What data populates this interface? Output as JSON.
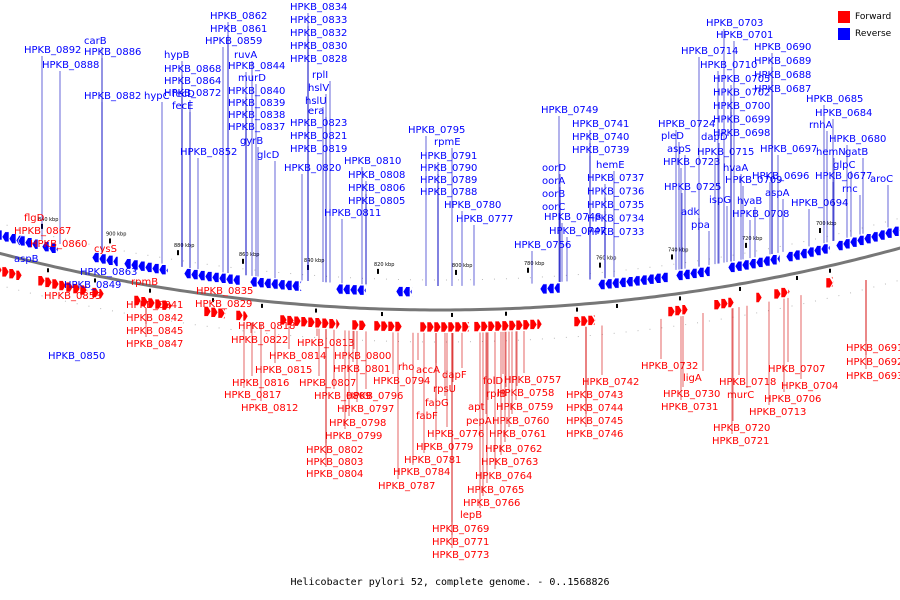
{
  "title": "Helicobacter pylori 52, complete genome. - 0..1568826",
  "legend": [
    {
      "label": "Forward",
      "color": "#ff0000"
    },
    {
      "label": "Reverse",
      "color": "#0000ff"
    }
  ],
  "colors": {
    "forward": "#ff0000",
    "reverse": "#0000ff",
    "forward_line": "#d40000",
    "reverse_line": "#0000c0",
    "backbone": "#777777"
  },
  "scale_ticks": [
    "840 kbp",
    "900 kbp",
    "880 kbp",
    "860 kbp",
    "840 kbp",
    "820 kbp",
    "800 kbp",
    "780 kbp",
    "760 kbp",
    "740 kbp",
    "720 kbp",
    "700 kbp"
  ],
  "reverse_labels": [
    "carB",
    "HPKB_0892",
    "HPKB_0886",
    "HPKB_0888",
    "HPKB_0882",
    "hypB",
    "hypC",
    "HPKB_0868",
    "HPKB_0864",
    "HPKB_0872",
    "fecD",
    "fecE",
    "HPKB_0862",
    "HPKB_0861",
    "HPKB_0859",
    "ruvA",
    "HPKB_0844",
    "murD",
    "HPKB_0840",
    "HPKB_0839",
    "HPKB_0838",
    "HPKB_0837",
    "gyrB",
    "HPKB_0852",
    "glcD",
    "HPKB_0834",
    "HPKB_0833",
    "HPKB_0832",
    "HPKB_0830",
    "HPKB_0828",
    "rplI",
    "hslV",
    "hslU",
    "era",
    "HPKB_0823",
    "HPKB_0821",
    "HPKB_0819",
    "HPKB_0820",
    "HPKB_0810",
    "HPKB_0808",
    "HPKB_0806",
    "HPKB_0805",
    "HPKB_0811",
    "HPKB_0795",
    "rpmE",
    "HPKB_0791",
    "HPKB_0790",
    "HPKB_0789",
    "HPKB_0788",
    "HPKB_0780",
    "HPKB_0777",
    "HPKB_0749",
    "HPKB_0741",
    "HPKB_0740",
    "HPKB_0739",
    "hemE",
    "HPKB_0737",
    "HPKB_0736",
    "HPKB_0735",
    "HPKB_0734",
    "HPKB_0733",
    "oorD",
    "oorA",
    "oorB",
    "oorC",
    "HPKB_0748",
    "HPKB_0747",
    "HPKB_0756",
    "HPKB_0724",
    "pleD",
    "aspS",
    "HPKB_0723",
    "HPKB_0725",
    "adk",
    "ppa",
    "dapD",
    "HPKB_0715",
    "hvaA",
    "ispG",
    "hyaB",
    "HPKB_0709",
    "HPKB_0708",
    "HPKB_0703",
    "HPKB_0701",
    "HPKB_0714",
    "HPKB_0710",
    "HPKB_0705",
    "HPKB_0702",
    "HPKB_0700",
    "HPKB_0699",
    "HPKB_0698",
    "HPKB_0697",
    "HPKB_0696",
    "aspA",
    "HPKB_0694",
    "HPKB_0690",
    "HPKB_0689",
    "HPKB_0688",
    "HPKB_0687",
    "HPKB_0685",
    "HPKB_0684",
    "rnhA",
    "HPKB_0680",
    "hemN",
    "gatB",
    "glpC",
    "HPKB_0677",
    "rnc",
    "aroC",
    "aspB",
    "HPKB_0863",
    "HPKB_0849",
    "HPKB_0850",
    "HPKB_0848"
  ],
  "forward_labels": [
    "flgD",
    "HPKB_0867",
    "HPKB_0860",
    "cysS",
    "rpmB",
    "HPKB_0853",
    "HPKB_0841",
    "HPKB_0842",
    "HPKB_0845",
    "HPKB_0847",
    "HPKB_0835",
    "HPKB_0829",
    "HPKB_0818",
    "HPKB_0822",
    "HPKB_0813",
    "HPKB_0814",
    "HPKB_0815",
    "HPKB_0816",
    "HPKB_0817",
    "HPKB_0812",
    "HPKB_0800",
    "HPKB_0801",
    "HPKB_0807",
    "HPKB_0809",
    "HPKB_0796",
    "HPKB_0797",
    "HPKB_0798",
    "HPKB_0799",
    "HPKB_0802",
    "HPKB_0803",
    "HPKB_0804",
    "rho",
    "HPKB_0794",
    "accA",
    "dapF",
    "rpsU",
    "fabG",
    "fabF",
    "apt",
    "folD",
    "rpiB",
    "pepA",
    "HPKB_0776",
    "HPKB_0779",
    "HPKB_0781",
    "HPKB_0784",
    "HPKB_0787",
    "HPKB_0757",
    "HPKB_0758",
    "HPKB_0759",
    "HPKB_0760",
    "HPKB_0761",
    "HPKB_0762",
    "HPKB_0763",
    "HPKB_0764",
    "HPKB_0765",
    "HPKB_0766",
    "lepB",
    "HPKB_0769",
    "HPKB_0771",
    "HPKB_0773",
    "HPKB_0742",
    "HPKB_0743",
    "HPKB_0744",
    "HPKB_0745",
    "HPKB_0746",
    "HPKB_0732",
    "ligA",
    "HPKB_0730",
    "HPKB_0731",
    "HPKB_0718",
    "murC",
    "HPKB_0720",
    "HPKB_0721",
    "HPKB_0713",
    "HPKB_0707",
    "HPKB_0704",
    "HPKB_0706",
    "HPKB_0691",
    "HPKB_0692",
    "HPKB_0693"
  ]
}
